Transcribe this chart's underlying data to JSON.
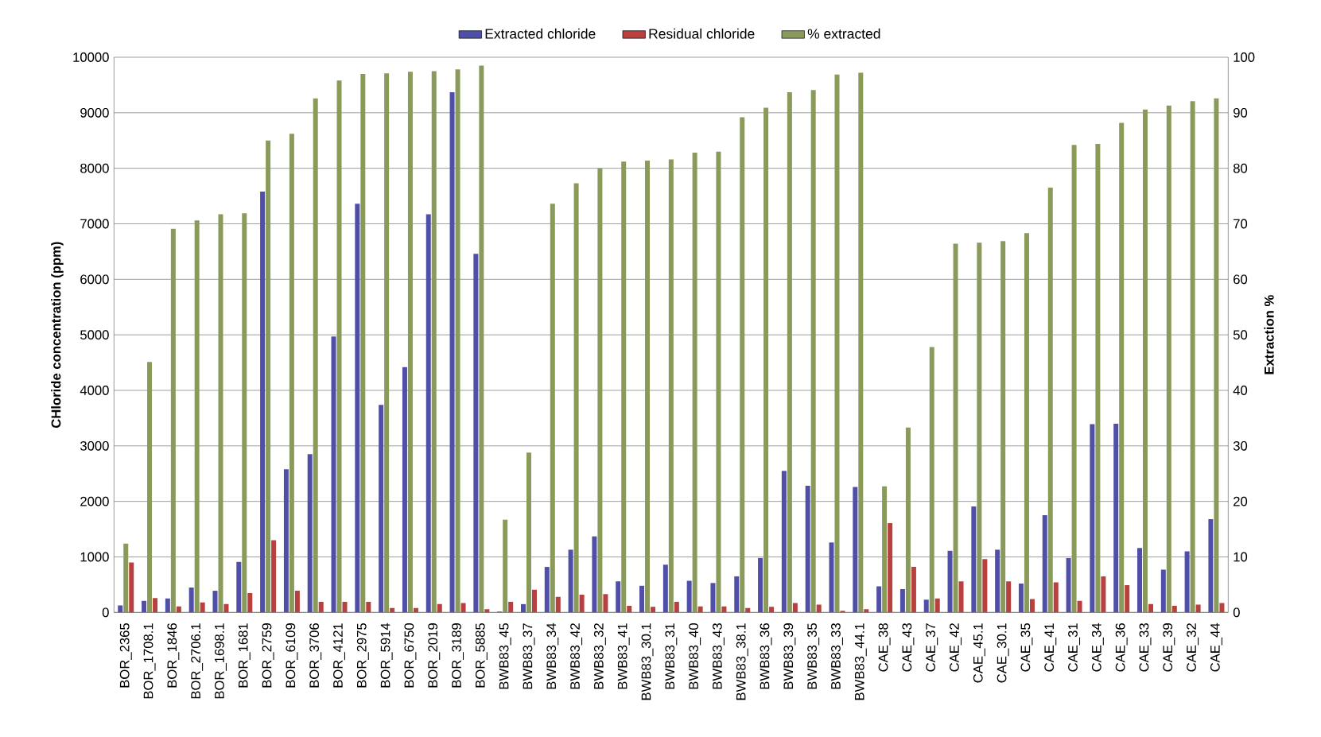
{
  "chart_data": {
    "type": "bar",
    "ylabel": "CHloride concentration (ppm)",
    "y2label": "Extraction %",
    "categories": [
      "BOR_2365",
      "BOR_1708.1",
      "BOR_1846",
      "BOR_2706.1",
      "BOR_1698.1",
      "BOR_1681",
      "BOR_2759",
      "BOR_6109",
      "BOR_3706",
      "BOR_4121",
      "BOR_2975",
      "BOR_5914",
      "BOR_6750",
      "BOR_2019",
      "BOR_3189",
      "BOR_5885",
      "BWB83_45",
      "BWB83_37",
      "BWB83_34",
      "BWB83_42",
      "BWB83_32",
      "BWB83_41",
      "BWB83_30.1",
      "BWB83_31",
      "BWB83_40",
      "BWB83_43",
      "BWB83_38.1",
      "BWB83_36",
      "BWB83_39",
      "BWB83_35",
      "BWB83_33",
      "BWB83_44.1",
      "CAE_38",
      "CAE_43",
      "CAE_37",
      "CAE_42",
      "CAE_45.1",
      "CAE_30.1",
      "CAE_35",
      "CAE_41",
      "CAE_31",
      "CAE_34",
      "CAE_36",
      "CAE_33",
      "CAE_39",
      "CAE_32",
      "CAE_44"
    ],
    "series": [
      {
        "name": "Extracted chloride",
        "color": "#4f4fa8",
        "values": [
          125,
          210,
          250,
          450,
          390,
          910,
          7580,
          2580,
          2850,
          4970,
          7360,
          3740,
          4420,
          7170,
          9370,
          6460,
          15,
          150,
          820,
          1130,
          1370,
          560,
          480,
          860,
          570,
          530,
          650,
          980,
          2550,
          2280,
          1260,
          2260,
          470,
          420,
          230,
          1110,
          1910,
          1130,
          520,
          1750,
          980,
          3390,
          3400,
          1160,
          770,
          1100,
          1680
        ]
      },
      {
        "name": "Residual chloride",
        "color": "#b8403f",
        "values": [
          900,
          260,
          110,
          180,
          150,
          350,
          1300,
          390,
          190,
          190,
          190,
          80,
          80,
          150,
          170,
          60,
          190,
          410,
          280,
          320,
          330,
          120,
          100,
          190,
          110,
          110,
          80,
          100,
          170,
          140,
          30,
          60,
          1610,
          820,
          250,
          560,
          960,
          560,
          240,
          540,
          210,
          650,
          490,
          150,
          120,
          140,
          170
        ]
      },
      {
        "name": "% extracted",
        "color": "#8a9a5b",
        "axis": "y2",
        "values": [
          12.4,
          45.1,
          69.1,
          70.6,
          71.7,
          71.9,
          85.0,
          86.2,
          92.6,
          95.8,
          97.0,
          97.1,
          97.4,
          97.5,
          97.8,
          98.5,
          16.7,
          28.8,
          73.6,
          77.3,
          80.0,
          81.2,
          81.4,
          81.6,
          82.8,
          83.0,
          89.2,
          90.9,
          93.7,
          94.1,
          96.9,
          97.2,
          22.7,
          33.3,
          47.8,
          66.4,
          66.6,
          66.9,
          68.3,
          76.5,
          84.2,
          84.4,
          88.2,
          90.6,
          91.3,
          92.1,
          92.6
        ]
      }
    ],
    "ylim": [
      0,
      10000
    ],
    "yticks": [
      0,
      1000,
      2000,
      3000,
      4000,
      5000,
      6000,
      7000,
      8000,
      9000,
      10000
    ],
    "y2lim": [
      0,
      100
    ],
    "y2ticks": [
      0,
      10,
      20,
      30,
      40,
      50,
      60,
      70,
      80,
      90,
      100
    ],
    "grid": "y",
    "legend": "top"
  }
}
